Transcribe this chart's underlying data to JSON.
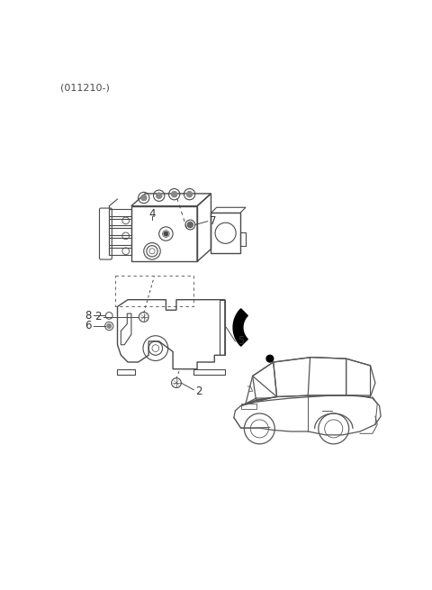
{
  "header_text": "(011210-)",
  "background_color": "#ffffff",
  "line_color": "#4a4a4a",
  "label_color": "#333333",
  "fig_width": 4.8,
  "fig_height": 6.55,
  "dpi": 100,
  "label_fontsize": 8.5
}
